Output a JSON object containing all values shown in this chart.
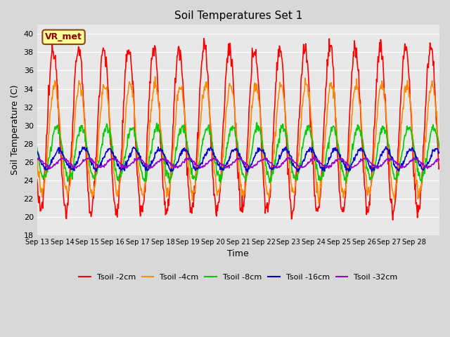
{
  "title": "Soil Temperatures Set 1",
  "xlabel": "Time",
  "ylabel": "Soil Temperature (C)",
  "ylim": [
    18,
    41
  ],
  "yticks": [
    18,
    20,
    22,
    24,
    26,
    28,
    30,
    32,
    34,
    36,
    38,
    40
  ],
  "x_labels": [
    "Sep 13",
    "Sep 14",
    "Sep 15",
    "Sep 16",
    "Sep 17",
    "Sep 18",
    "Sep 19",
    "Sep 20",
    "Sep 21",
    "Sep 22",
    "Sep 23",
    "Sep 24",
    "Sep 25",
    "Sep 26",
    "Sep 27",
    "Sep 28"
  ],
  "annotation_text": "VR_met",
  "fig_bg_color": "#d8d8d8",
  "plot_bg_color": "#e8e8e8",
  "series": [
    {
      "label": "Tsoil -2cm",
      "color": "#ff0000"
    },
    {
      "label": "Tsoil -4cm",
      "color": "#ff8c00"
    },
    {
      "label": "Tsoil -8cm",
      "color": "#00cc00"
    },
    {
      "label": "Tsoil -16cm",
      "color": "#0000cc"
    },
    {
      "label": "Tsoil -32cm",
      "color": "#9900cc"
    }
  ]
}
